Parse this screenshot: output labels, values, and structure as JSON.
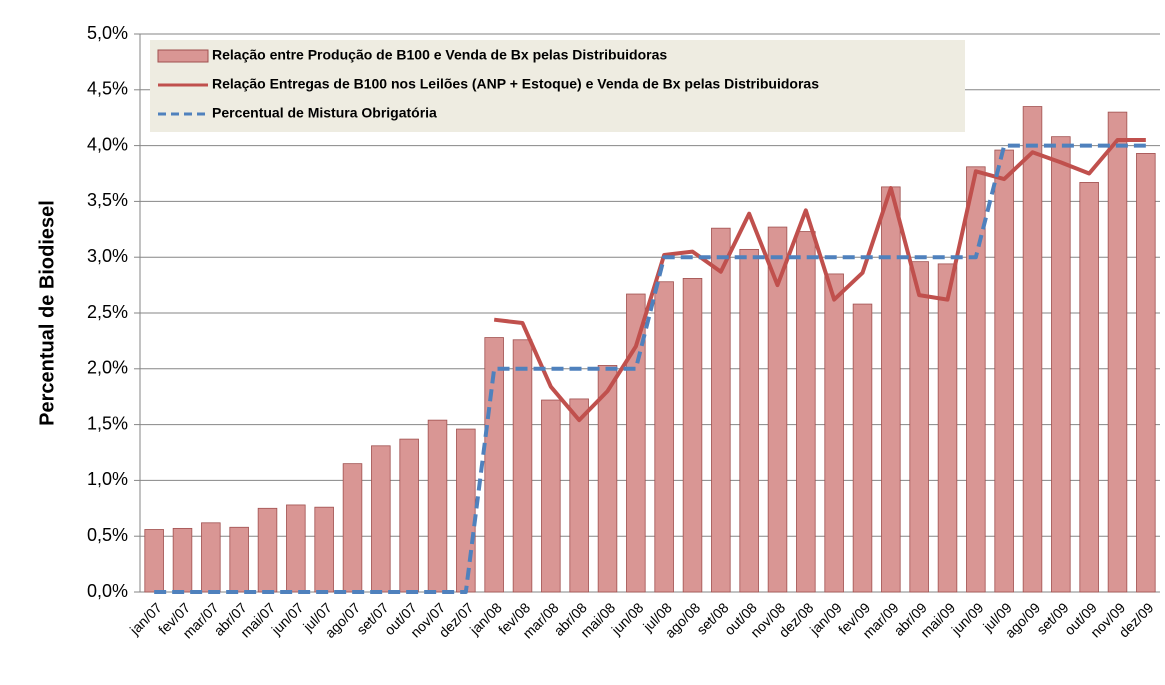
{
  "chart_data": {
    "type": "bar",
    "y_label": "Percentual de Biodiesel",
    "categories": [
      "jan/07",
      "fev/07",
      "mar/07",
      "abr/07",
      "mai/07",
      "jun/07",
      "jul/07",
      "ago/07",
      "set/07",
      "out/07",
      "nov/07",
      "dez/07",
      "jan/08",
      "fev/08",
      "mar/08",
      "abr/08",
      "mai/08",
      "jun/08",
      "jul/08",
      "ago/08",
      "set/08",
      "out/08",
      "nov/08",
      "dez/08",
      "jan/09",
      "fev/09",
      "mar/09",
      "abr/09",
      "mai/09",
      "jun/09",
      "jul/09",
      "ago/09",
      "set/09",
      "out/09",
      "nov/09",
      "dez/09"
    ],
    "series": [
      {
        "name": "Relação entre Produção de B100 e Venda de Bx pelas Distribuidoras",
        "type": "bar",
        "color": "#d99694",
        "values": [
          0.56,
          0.57,
          0.62,
          0.58,
          0.75,
          0.78,
          0.76,
          1.15,
          1.31,
          1.37,
          1.54,
          1.46,
          2.28,
          2.26,
          1.72,
          1.73,
          2.03,
          2.67,
          2.78,
          2.81,
          3.26,
          3.07,
          3.27,
          3.23,
          2.85,
          2.58,
          3.63,
          2.96,
          2.94,
          3.81,
          3.96,
          4.35,
          4.08,
          3.67,
          4.3,
          3.93
        ]
      },
      {
        "name": "Relação Entregas de B100 nos Leilões (ANP + Estoque) e Venda de Bx pelas Distribuidoras",
        "type": "line",
        "color": "#c0504d",
        "values": [
          null,
          null,
          null,
          null,
          null,
          null,
          null,
          null,
          null,
          null,
          null,
          null,
          2.44,
          2.41,
          1.84,
          1.54,
          1.8,
          2.2,
          3.02,
          3.05,
          2.87,
          3.39,
          2.75,
          3.42,
          2.62,
          2.86,
          3.62,
          2.66,
          2.62,
          3.77,
          3.7,
          3.94,
          3.85,
          3.75,
          4.05,
          4.05
        ]
      },
      {
        "name": "Percentual de Mistura Obrigatória",
        "type": "dashed-line",
        "color": "#4f81bd",
        "values": [
          0,
          0,
          0,
          0,
          0,
          0,
          0,
          0,
          0,
          0,
          0,
          0,
          2,
          2,
          2,
          2,
          2,
          2,
          3,
          3,
          3,
          3,
          3,
          3,
          3,
          3,
          3,
          3,
          3,
          3,
          4,
          4,
          4,
          4,
          4,
          4
        ]
      }
    ],
    "ylim": [
      0,
      5
    ],
    "yticks": [
      {
        "value": 0,
        "label": "0,0%"
      },
      {
        "value": 0.5,
        "label": "0,5%"
      },
      {
        "value": 1,
        "label": "1,0%"
      },
      {
        "value": 1.5,
        "label": "1,5%"
      },
      {
        "value": 2,
        "label": "2,0%"
      },
      {
        "value": 2.5,
        "label": "2,5%"
      },
      {
        "value": 3,
        "label": "3,0%"
      },
      {
        "value": 3.5,
        "label": "3,5%"
      },
      {
        "value": 4,
        "label": "4,0%"
      },
      {
        "value": 4.5,
        "label": "4,5%"
      },
      {
        "value": 5,
        "label": "5,0%"
      }
    ],
    "grid": true,
    "legend": "upper left"
  }
}
